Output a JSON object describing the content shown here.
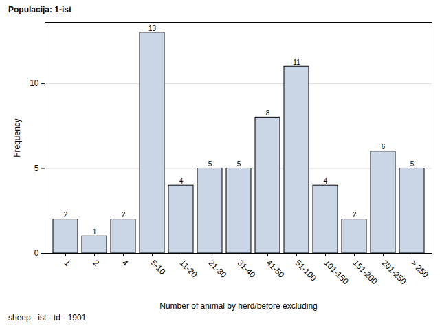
{
  "chart_data": {
    "type": "bar",
    "title": "Populacija: 1-ist",
    "caption": "sheep - ist - td - 1901",
    "x_label": "Number of animal by herd/before excluding",
    "y_label": "Frequency",
    "categories": [
      "1",
      "2",
      "4",
      "5-10",
      "11-20",
      "21-30",
      "31-40",
      "41-50",
      "51-100",
      "101-150",
      "151-200",
      "201-250",
      "> 250"
    ],
    "values": [
      2,
      1,
      2,
      13,
      4,
      5,
      5,
      8,
      11,
      4,
      2,
      6,
      5
    ],
    "color": "#cad5e5",
    "ylim": [
      0,
      13.6
    ],
    "yticks": [
      0,
      5,
      10
    ],
    "grid": true,
    "data_labels": true
  }
}
